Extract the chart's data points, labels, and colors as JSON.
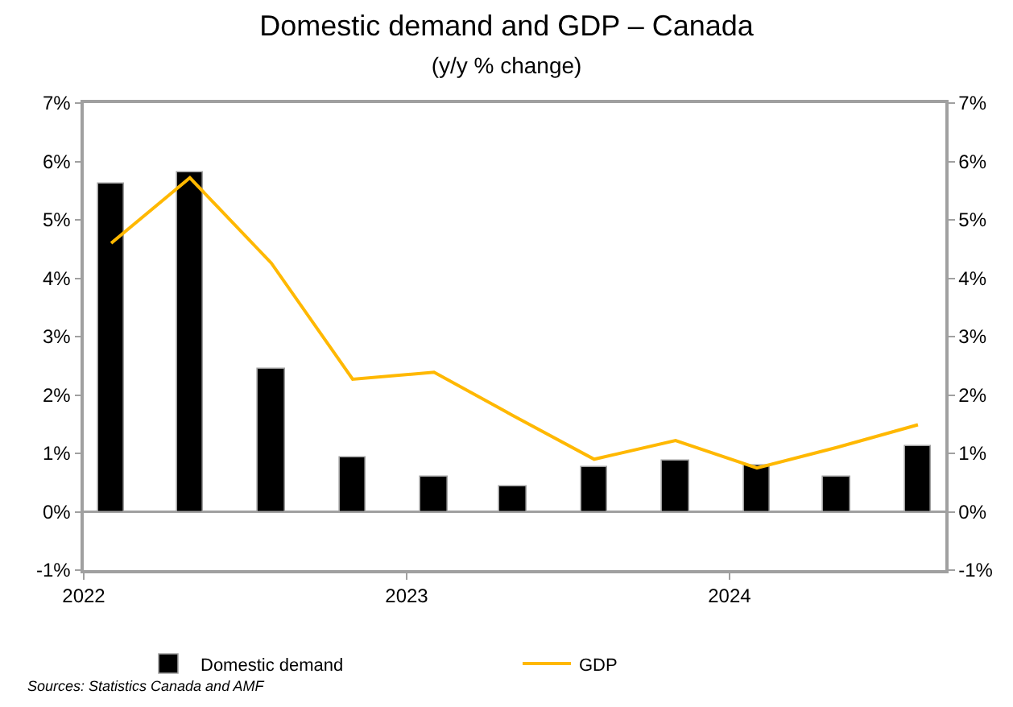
{
  "chart_data": {
    "type": "bar",
    "title": "Domestic demand and GDP – Canada",
    "subtitle": "(y/y % change)",
    "x": [
      "2022-02",
      "2022-05",
      "2022-08",
      "2022-11",
      "2023-02",
      "2023-05",
      "2023-08",
      "2023-11",
      "2024-02",
      "2024-05",
      "2024-08"
    ],
    "series": [
      {
        "name": "Domestic demand",
        "color": "#000000",
        "values": [
          5.61,
          5.82,
          2.45,
          0.92,
          0.6,
          0.44,
          0.76,
          0.88,
          0.8,
          0.6,
          1.12
        ]
      },
      {
        "name": "GDP",
        "type": "line",
        "color": "#ffb800",
        "marker": "none",
        "line_style": "solid",
        "values": [
          4.6,
          5.72,
          4.26,
          2.27,
          2.39,
          1.65,
          0.9,
          1.22,
          0.75,
          1.1,
          1.49
        ]
      }
    ],
    "xlim": [
      "2022-01",
      "2024-09"
    ],
    "xticks": [
      {
        "value": "2022-01",
        "label": "2022"
      },
      {
        "value": "2023-01",
        "label": "2023"
      },
      {
        "value": "2024-01",
        "label": "2024"
      }
    ],
    "ylim": [
      -1,
      7
    ],
    "yticks": [
      {
        "value": -1,
        "label": "-1%"
      },
      {
        "value": 0,
        "label": "0%"
      },
      {
        "value": 1,
        "label": "1%"
      },
      {
        "value": 2,
        "label": "2%"
      },
      {
        "value": 3,
        "label": "3%"
      },
      {
        "value": 4,
        "label": "4%"
      },
      {
        "value": 5,
        "label": "5%"
      },
      {
        "value": 6,
        "label": "6%"
      },
      {
        "value": 7,
        "label": "7%"
      }
    ],
    "y2lim": [
      -1,
      7
    ],
    "y2ticks": [
      {
        "value": -1,
        "label": "-1%"
      },
      {
        "value": 0,
        "label": "0%"
      },
      {
        "value": 1,
        "label": "1%"
      },
      {
        "value": 2,
        "label": "2%"
      },
      {
        "value": 3,
        "label": "3%"
      },
      {
        "value": 4,
        "label": "4%"
      },
      {
        "value": 5,
        "label": "5%"
      },
      {
        "value": 6,
        "label": "6%"
      },
      {
        "value": 7,
        "label": "7%"
      }
    ],
    "grid": false,
    "ref_lines": [
      {
        "axis": "y",
        "value": 0,
        "color": "#a0a0a0"
      }
    ],
    "legend": "bottom",
    "annotations": [
      "Sources: Statistics Canada and AMF"
    ]
  }
}
